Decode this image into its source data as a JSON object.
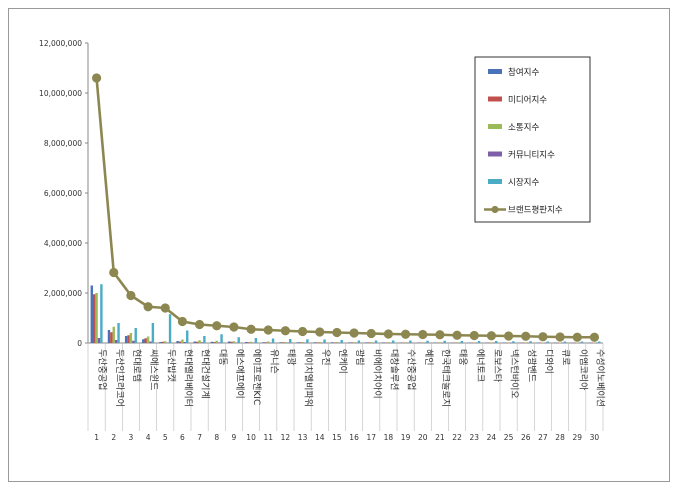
{
  "chart_data": {
    "type": "bar",
    "title": "",
    "xlabel": "",
    "ylabel": "",
    "ylim": [
      0,
      12000000
    ],
    "yticks": [
      "0",
      "2,000,000",
      "4,000,000",
      "6,000,000",
      "8,000,000",
      "10,000,000",
      "12,000,000"
    ],
    "legend_position": "right",
    "grid": false,
    "index_labels": [
      "1",
      "2",
      "3",
      "4",
      "5",
      "6",
      "7",
      "8",
      "9",
      "10",
      "11",
      "12",
      "13",
      "14",
      "15",
      "16",
      "17",
      "18",
      "19",
      "20",
      "21",
      "22",
      "23",
      "24",
      "25",
      "26",
      "27",
      "28",
      "29",
      "30"
    ],
    "categories": [
      "두산중공업",
      "두산인프라코어",
      "현대로템",
      "씨에스윈드",
      "두산밥캣",
      "현대엘리베이터",
      "현대건설기계",
      "대동",
      "에스에프에이",
      "에이프로젠KIC",
      "유니슨",
      "태광",
      "에이치엘비파워",
      "우진",
      "엔케이",
      "광림",
      "비에이치아이",
      "대창솔루션",
      "수산중공업",
      "혜인",
      "한국테크놀로지",
      "태웅",
      "에너토크",
      "로보스타",
      "넥스턴바이오",
      "성광벤드",
      "디와이",
      "큐로",
      "이엠코리아",
      "수성이노베이션"
    ],
    "series": [
      {
        "name": "참여지수",
        "color": "#4a72b8",
        "values": [
          2300000,
          520000,
          280000,
          150000,
          40000,
          80000,
          60000,
          50000,
          60000,
          40000,
          30000,
          30000,
          30000,
          30000,
          30000,
          25000,
          25000,
          25000,
          20000,
          20000,
          20000,
          20000,
          20000,
          20000,
          20000,
          15000,
          15000,
          15000,
          15000,
          15000
        ]
      },
      {
        "name": "미디어지수",
        "color": "#c0504d",
        "values": [
          1950000,
          430000,
          310000,
          190000,
          50000,
          60000,
          50000,
          40000,
          50000,
          30000,
          30000,
          30000,
          30000,
          25000,
          25000,
          25000,
          25000,
          20000,
          20000,
          20000,
          20000,
          20000,
          20000,
          15000,
          15000,
          15000,
          15000,
          15000,
          15000,
          15000
        ]
      },
      {
        "name": "소통지수",
        "color": "#9bbb59",
        "values": [
          2000000,
          650000,
          400000,
          260000,
          70000,
          140000,
          110000,
          90000,
          70000,
          50000,
          60000,
          40000,
          40000,
          40000,
          40000,
          35000,
          35000,
          35000,
          30000,
          30000,
          30000,
          30000,
          25000,
          25000,
          25000,
          25000,
          20000,
          20000,
          20000,
          20000
        ]
      },
      {
        "name": "커뮤니티지수",
        "color": "#7f5fa8",
        "values": [
          200000,
          120000,
          90000,
          60000,
          20000,
          40000,
          30000,
          25000,
          20000,
          20000,
          15000,
          15000,
          15000,
          15000,
          15000,
          15000,
          15000,
          10000,
          10000,
          10000,
          10000,
          10000,
          10000,
          10000,
          10000,
          10000,
          10000,
          10000,
          10000,
          10000
        ]
      },
      {
        "name": "시장지수",
        "color": "#4bacc6",
        "values": [
          2350000,
          800000,
          600000,
          800000,
          1150000,
          500000,
          280000,
          350000,
          230000,
          200000,
          180000,
          160000,
          150000,
          140000,
          120000,
          100000,
          100000,
          100000,
          100000,
          90000,
          90000,
          80000,
          80000,
          80000,
          70000,
          70000,
          60000,
          60000,
          60000,
          60000
        ]
      }
    ],
    "line_series": {
      "name": "브랜드평판지수",
      "color": "#8c8750",
      "values": [
        10600000,
        2820000,
        1900000,
        1450000,
        1400000,
        860000,
        740000,
        690000,
        640000,
        550000,
        520000,
        490000,
        460000,
        440000,
        420000,
        400000,
        380000,
        360000,
        350000,
        340000,
        330000,
        310000,
        300000,
        290000,
        280000,
        270000,
        250000,
        240000,
        230000,
        230000
      ]
    }
  }
}
